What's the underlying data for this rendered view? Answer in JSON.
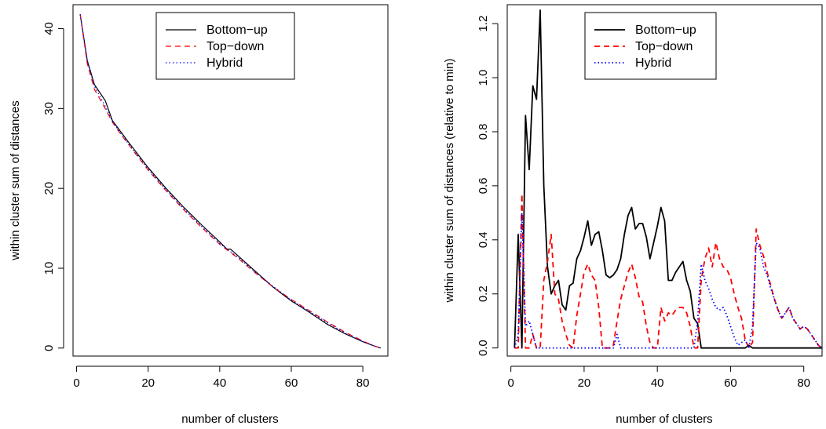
{
  "chart_data": [
    {
      "type": "line",
      "title": "",
      "xlabel": "number of clusters",
      "ylabel": "within cluster sum of distances",
      "xlim": [
        -1,
        87
      ],
      "ylim": [
        -1,
        43
      ],
      "xticks": [
        0,
        20,
        40,
        60,
        80
      ],
      "xtick_labels": [
        "0",
        "20",
        "40",
        "60",
        "80"
      ],
      "yticks": [
        0,
        10,
        20,
        30,
        40
      ],
      "ytick_labels": [
        "0",
        "10",
        "20",
        "30",
        "40"
      ],
      "legend_position": "top-center",
      "grid": false,
      "series": [
        {
          "name": "Bottom−up",
          "color": "#000000",
          "style": "solid",
          "x": [
            1,
            3,
            5,
            8,
            10,
            12,
            15,
            20,
            25,
            30,
            35,
            40,
            42,
            43,
            45,
            50,
            55,
            60,
            65,
            66,
            67,
            70,
            75,
            80,
            83,
            85
          ],
          "y": [
            41.8,
            36,
            33,
            31,
            28.5,
            27.3,
            25.5,
            22.6,
            20,
            17.6,
            15.4,
            13.3,
            12.4,
            12.4,
            11.6,
            9.6,
            7.6,
            5.9,
            4.5,
            4.2,
            3.9,
            3.0,
            1.8,
            0.8,
            0.3,
            0
          ]
        },
        {
          "name": "Top−down",
          "color": "#ff0000",
          "style": "dashed",
          "x": [
            1,
            3,
            5,
            8,
            10,
            12,
            15,
            20,
            25,
            30,
            35,
            40,
            45,
            50,
            55,
            60,
            65,
            70,
            75,
            80,
            83,
            85
          ],
          "y": [
            41.8,
            35.6,
            32.4,
            30,
            28.3,
            27.0,
            25.2,
            22.3,
            19.7,
            17.3,
            15.1,
            13.0,
            11.3,
            9.4,
            7.6,
            6.1,
            4.7,
            3.3,
            2.0,
            0.9,
            0.3,
            0
          ]
        },
        {
          "name": "Hybrid",
          "color": "#0000ff",
          "style": "dotted",
          "x": [
            1,
            3,
            5,
            8,
            10,
            12,
            15,
            20,
            25,
            30,
            35,
            40,
            45,
            50,
            55,
            60,
            65,
            70,
            75,
            80,
            83,
            85
          ],
          "y": [
            41.8,
            35.9,
            32.8,
            30.3,
            28.4,
            27.1,
            25.3,
            22.4,
            19.8,
            17.4,
            15.2,
            13.1,
            11.4,
            9.5,
            7.7,
            6.0,
            4.6,
            3.2,
            1.9,
            0.8,
            0.3,
            0
          ]
        }
      ]
    },
    {
      "type": "line",
      "title": "",
      "xlabel": "number of clusters",
      "ylabel": "within cluster sum of distances (relative to min)",
      "xlim": [
        -1,
        85
      ],
      "ylim": [
        -0.03,
        1.27
      ],
      "xticks": [
        0,
        20,
        40,
        60,
        80
      ],
      "xtick_labels": [
        "0",
        "20",
        "40",
        "60",
        "80"
      ],
      "yticks": [
        0.0,
        0.2,
        0.4,
        0.6,
        0.8,
        1.0,
        1.2
      ],
      "ytick_labels": [
        "0.0",
        "0.2",
        "0.4",
        "0.6",
        "0.8",
        "1.0",
        "1.2"
      ],
      "legend_position": "top-center",
      "grid": false,
      "series": [
        {
          "name": "Bottom−up",
          "color": "#000000",
          "style": "solid",
          "x": [
            1,
            2,
            3,
            4,
            5,
            6,
            7,
            8,
            9,
            10,
            11,
            12,
            13,
            14,
            15,
            16,
            17,
            18,
            19,
            20,
            21,
            22,
            23,
            24,
            25,
            26,
            27,
            28,
            29,
            30,
            31,
            32,
            33,
            34,
            35,
            36,
            37,
            38,
            39,
            40,
            41,
            42,
            43,
            44,
            45,
            46,
            47,
            48,
            49,
            50,
            51,
            52,
            53,
            54,
            55,
            56,
            57,
            58,
            59,
            60,
            61,
            62,
            63,
            64,
            65,
            66,
            67,
            68,
            69,
            70,
            75,
            80,
            85
          ],
          "y": [
            0,
            0.42,
            0,
            0.86,
            0.66,
            0.97,
            0.92,
            1.25,
            0.6,
            0.3,
            0.2,
            0.23,
            0.25,
            0.16,
            0.14,
            0.23,
            0.24,
            0.33,
            0.36,
            0.41,
            0.47,
            0.38,
            0.42,
            0.43,
            0.36,
            0.27,
            0.26,
            0.27,
            0.29,
            0.33,
            0.42,
            0.49,
            0.52,
            0.44,
            0.46,
            0.46,
            0.41,
            0.33,
            0.39,
            0.45,
            0.52,
            0.47,
            0.25,
            0.25,
            0.28,
            0.3,
            0.32,
            0.25,
            0.21,
            0.11,
            0.09,
            0,
            0,
            0,
            0,
            0,
            0,
            0,
            0,
            0,
            0,
            0,
            0,
            0,
            0.01,
            0,
            0,
            0,
            0,
            0,
            0,
            0,
            0
          ]
        },
        {
          "name": "Top−down",
          "color": "#ff0000",
          "style": "dashed",
          "x": [
            1,
            2,
            3,
            4,
            5,
            6,
            7,
            8,
            9,
            10,
            11,
            12,
            13,
            14,
            15,
            16,
            17,
            18,
            19,
            20,
            21,
            22,
            23,
            24,
            25,
            26,
            27,
            28,
            29,
            30,
            31,
            32,
            33,
            34,
            35,
            36,
            37,
            38,
            39,
            40,
            41,
            42,
            43,
            44,
            45,
            46,
            47,
            48,
            49,
            50,
            51,
            52,
            53,
            54,
            55,
            56,
            57,
            58,
            59,
            60,
            61,
            62,
            63,
            64,
            65,
            66,
            67,
            68,
            69,
            70,
            71,
            72,
            73,
            74,
            75,
            76,
            77,
            78,
            79,
            80,
            81,
            82,
            83,
            84,
            85
          ],
          "y": [
            0,
            0,
            0.57,
            0,
            0,
            0.05,
            0,
            0,
            0.25,
            0.32,
            0.42,
            0.2,
            0.18,
            0.1,
            0.05,
            0.01,
            0,
            0.12,
            0.2,
            0.28,
            0.31,
            0.27,
            0.25,
            0.15,
            0,
            0,
            0,
            0.01,
            0.1,
            0.18,
            0.23,
            0.28,
            0.31,
            0.26,
            0.19,
            0.17,
            0.08,
            0.02,
            0,
            0,
            0.15,
            0.1,
            0.13,
            0.12,
            0.14,
            0.15,
            0.15,
            0.13,
            0.08,
            0,
            0,
            0.25,
            0.33,
            0.37,
            0.3,
            0.39,
            0.33,
            0.3,
            0.29,
            0.26,
            0.2,
            0.15,
            0.11,
            0.03,
            0,
            0.02,
            0.44,
            0.38,
            0.34,
            0.28,
            0.23,
            0.18,
            0.14,
            0.11,
            0.13,
            0.15,
            0.11,
            0.09,
            0.07,
            0.08,
            0.07,
            0.05,
            0.03,
            0.01,
            0
          ]
        },
        {
          "name": "Hybrid",
          "color": "#0000ff",
          "style": "dotted",
          "x": [
            1,
            2,
            3,
            4,
            5,
            6,
            7,
            8,
            9,
            10,
            15,
            20,
            25,
            28,
            29,
            30,
            35,
            40,
            45,
            50,
            51,
            52,
            53,
            54,
            55,
            56,
            57,
            58,
            59,
            60,
            61,
            62,
            63,
            64,
            65,
            66,
            67,
            68,
            69,
            70,
            71,
            72,
            73,
            74,
            75,
            76,
            77,
            78,
            79,
            80,
            81,
            82,
            83,
            84,
            85
          ],
          "y": [
            0,
            0.05,
            0.5,
            0.08,
            0.1,
            0.05,
            0,
            0,
            0,
            0,
            0,
            0,
            0,
            0,
            0.05,
            0,
            0,
            0,
            0,
            0,
            0.1,
            0.31,
            0.25,
            0.22,
            0.18,
            0.15,
            0.14,
            0.15,
            0.12,
            0.08,
            0.04,
            0.01,
            0.02,
            0.03,
            0,
            0.08,
            0.39,
            0.37,
            0.3,
            0.27,
            0.22,
            0.18,
            0.14,
            0.11,
            0.13,
            0.15,
            0.11,
            0.09,
            0.07,
            0.08,
            0.07,
            0.05,
            0.03,
            0.01,
            0
          ]
        }
      ]
    }
  ]
}
